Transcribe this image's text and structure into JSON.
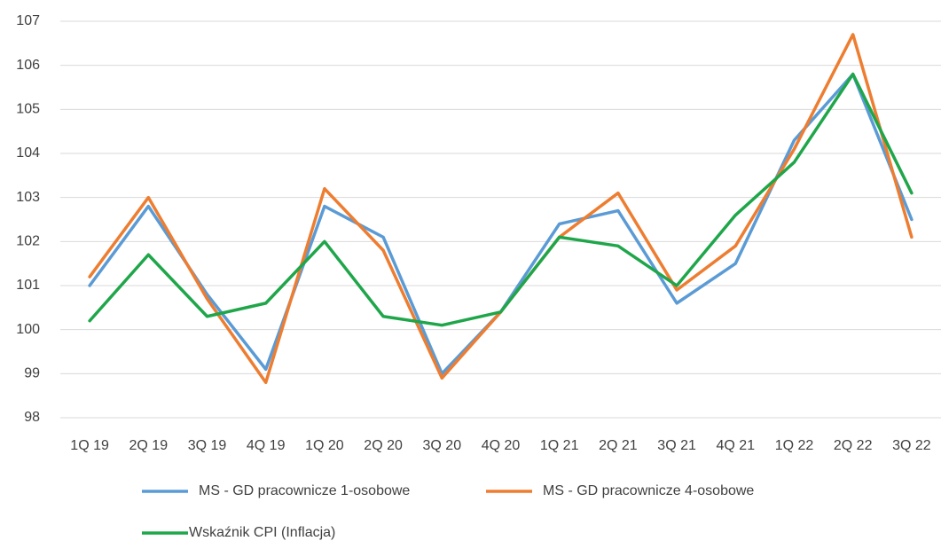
{
  "chart_data": {
    "type": "line",
    "categories": [
      "1Q 19",
      "2Q 19",
      "3Q 19",
      "4Q 19",
      "1Q 20",
      "2Q 20",
      "3Q 20",
      "4Q 20",
      "1Q 21",
      "2Q 21",
      "3Q 21",
      "4Q 21",
      "1Q 22",
      "2Q 22",
      "3Q 22"
    ],
    "series": [
      {
        "name": "MS - GD pracownicze 1-osobowe",
        "color": "#5b9bd5",
        "values": [
          101.0,
          102.8,
          100.8,
          99.1,
          102.8,
          102.1,
          99.0,
          100.4,
          102.4,
          102.7,
          100.6,
          101.5,
          104.3,
          105.8,
          102.5
        ]
      },
      {
        "name": "MS - GD pracownicze 4-osobowe",
        "color": "#ed7d31",
        "values": [
          101.2,
          103.0,
          100.7,
          98.8,
          103.2,
          101.8,
          98.9,
          100.4,
          102.1,
          103.1,
          100.9,
          101.9,
          104.1,
          106.7,
          102.1
        ]
      },
      {
        "name": "Wskaźnik CPI (Inflacja)",
        "color": "#1fa64a",
        "values": [
          100.2,
          101.7,
          100.3,
          100.6,
          102.0,
          100.3,
          100.1,
          100.4,
          102.1,
          101.9,
          101.0,
          102.6,
          103.8,
          105.8,
          103.1
        ]
      }
    ],
    "ylim": [
      98,
      107
    ],
    "yticks": [
      98,
      99,
      100,
      101,
      102,
      103,
      104,
      105,
      106,
      107
    ],
    "grid": true
  }
}
